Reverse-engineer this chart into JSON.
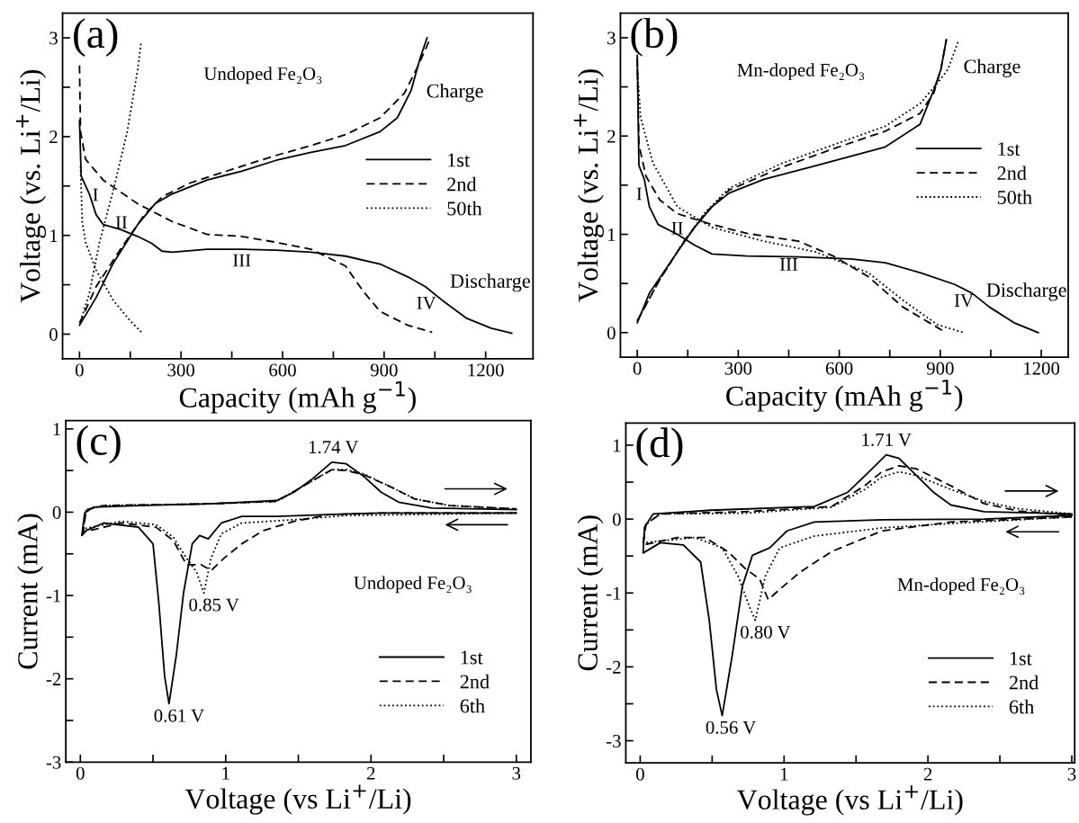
{
  "chart_data": [
    {
      "type": "line",
      "xlabel": "Capacity (mAh g$^{−1}$)",
      "ylabel": "Voltage (vs. Li$^{+}$/Li)",
      "legend": "right",
      "xlim": [
        -50,
        1340
      ],
      "ylim": [
        -0.25,
        3.25
      ],
      "xticks": [
        0,
        {
          "value": 150,
          "label": null
        },
        300,
        {
          "value": 450,
          "label": null
        },
        600,
        {
          "value": 750,
          "label": null
        },
        900,
        {
          "value": 1050,
          "label": null
        },
        1200
      ],
      "yticks": [
        0,
        {
          "value": 0.5,
          "label": null
        },
        1,
        {
          "value": 1.5,
          "label": null
        },
        2,
        {
          "value": 2.5,
          "label": null
        },
        3
      ],
      "annotations": [
        "(a)",
        "Undoped Fe₂O₃",
        "I",
        "II",
        "III",
        "IV",
        "Charge",
        "Discharge"
      ],
      "series": [
        {
          "name": "1st",
          "color": "#000000",
          "line_style": "solid",
          "x": [
            0,
            5,
            29,
            49,
            70,
            121,
            172,
            213,
            244,
            274,
            377,
            479,
            581,
            684,
            786,
            888,
            970,
            1022,
            1073,
            1144,
            1216,
            1277
          ],
          "values": [
            2.16,
            1.6,
            1.42,
            1.21,
            1.11,
            1.06,
            0.99,
            0.92,
            0.84,
            0.83,
            0.86,
            0.86,
            0.85,
            0.83,
            0.79,
            0.71,
            0.58,
            0.48,
            0.34,
            0.16,
            0.06,
            0.01
          ]
        },
        {
          "color": "#000000",
          "line_style": "solid",
          "x": [
            0,
            49,
            100,
            172,
            223,
            274,
            377,
            479,
            581,
            684,
            786,
            888,
            939,
            980,
            1006,
            1027
          ],
          "values": [
            0.09,
            0.37,
            0.72,
            1.11,
            1.32,
            1.42,
            1.56,
            1.65,
            1.76,
            1.84,
            1.91,
            2.05,
            2.19,
            2.47,
            2.79,
            3.0
          ]
        },
        {
          "name": "2nd",
          "color": "#000000",
          "line_style": "dashed",
          "x": [
            0,
            3,
            18,
            70,
            172,
            274,
            377,
            479,
            581,
            684,
            786,
            837,
            888,
            970,
            1042
          ],
          "values": [
            2.72,
            2.05,
            1.77,
            1.56,
            1.32,
            1.14,
            1.01,
            0.99,
            0.93,
            0.86,
            0.69,
            0.44,
            0.23,
            0.09,
            0.02
          ]
        },
        {
          "color": "#000000",
          "line_style": "dashed",
          "x": [
            0,
            49,
            121,
            192,
            244,
            326,
            479,
            581,
            684,
            786,
            888,
            960,
            1001,
            1032
          ],
          "values": [
            0.11,
            0.48,
            0.86,
            1.21,
            1.39,
            1.53,
            1.7,
            1.81,
            1.91,
            2.02,
            2.19,
            2.44,
            2.72,
            2.96
          ]
        },
        {
          "name": "50th",
          "color": "#000000",
          "line_style": "dotted",
          "x": [
            3,
            8,
            18,
            49,
            100,
            151,
            183
          ],
          "values": [
            1.7,
            1.14,
            0.93,
            0.65,
            0.34,
            0.13,
            0.02
          ]
        },
        {
          "color": "#000000",
          "line_style": "dotted",
          "x": [
            3,
            29,
            59,
            100,
            141,
            172,
            182
          ],
          "values": [
            0.13,
            0.41,
            0.93,
            1.46,
            2.05,
            2.68,
            2.96
          ]
        }
      ]
    },
    {
      "type": "line",
      "xlabel": "Capacity (mAh g$^{−1}$)",
      "ylabel": "Voltage (vs. Li$^{+}$/Li)",
      "legend": "right",
      "xlim": [
        -50,
        1280
      ],
      "ylim": [
        -0.25,
        3.25
      ],
      "xticks": [
        0,
        {
          "value": 150,
          "label": null
        },
        300,
        {
          "value": 450,
          "label": null
        },
        600,
        {
          "value": 750,
          "label": null
        },
        900,
        {
          "value": 1050,
          "label": null
        },
        1200
      ],
      "yticks": [
        0,
        {
          "value": 0.5,
          "label": null
        },
        1,
        {
          "value": 1.5,
          "label": null
        },
        2,
        {
          "value": 2.5,
          "label": null
        },
        3
      ],
      "annotations": [
        "(b)",
        "Mn-doped Fe₂O₃",
        "I",
        "II",
        "III",
        "IV",
        "Charge",
        "Discharge"
      ],
      "series": [
        {
          "name": "1st",
          "color": "#000000",
          "line_style": "solid",
          "x": [
            0,
            5,
            21,
            36,
            62,
            119,
            170,
            222,
            325,
            479,
            634,
            737,
            840,
            943,
            995,
            1046,
            1119,
            1191
          ],
          "values": [
            2.82,
            1.7,
            1.56,
            1.28,
            1.1,
            1.0,
            0.89,
            0.8,
            0.78,
            0.77,
            0.75,
            0.71,
            0.61,
            0.49,
            0.4,
            0.26,
            0.1,
            0.0
          ]
        },
        {
          "color": "#000000",
          "line_style": "solid",
          "x": [
            0,
            36,
            119,
            170,
            222,
            273,
            376,
            531,
            737,
            840,
            881,
            902,
            918
          ],
          "values": [
            0.1,
            0.4,
            0.82,
            1.07,
            1.28,
            1.42,
            1.56,
            1.7,
            1.89,
            2.12,
            2.47,
            2.68,
            2.98
          ]
        },
        {
          "name": "2nd",
          "color": "#000000",
          "line_style": "dashed",
          "x": [
            0,
            5,
            26,
            67,
            119,
            222,
            325,
            479,
            582,
            686,
            789,
            912
          ],
          "values": [
            2.79,
            1.91,
            1.59,
            1.35,
            1.21,
            1.1,
            1.01,
            0.93,
            0.78,
            0.57,
            0.26,
            0.01
          ]
        },
        {
          "color": "#000000",
          "line_style": "dashed",
          "x": [
            0,
            67,
            139,
            201,
            273,
            428,
            582,
            737,
            840,
            881,
            902,
            918
          ],
          "values": [
            0.12,
            0.54,
            0.93,
            1.21,
            1.45,
            1.68,
            1.87,
            2.05,
            2.23,
            2.44,
            2.68,
            2.98
          ]
        },
        {
          "name": "50th",
          "color": "#000000",
          "line_style": "dotted",
          "x": [
            0,
            10,
            46,
            119,
            222,
            376,
            531,
            686,
            789,
            892,
            969
          ],
          "values": [
            2.68,
            2.19,
            1.73,
            1.28,
            1.07,
            0.93,
            0.82,
            0.61,
            0.33,
            0.08,
            0.0
          ]
        },
        {
          "color": "#000000",
          "line_style": "dotted",
          "x": [
            0,
            67,
            139,
            201,
            273,
            428,
            582,
            737,
            840,
            892,
            923,
            954
          ],
          "values": [
            0.12,
            0.54,
            0.93,
            1.22,
            1.47,
            1.72,
            1.91,
            2.1,
            2.33,
            2.54,
            2.68,
            2.97
          ]
        }
      ]
    },
    {
      "type": "line",
      "xlabel": "Voltage (vs Li$^{+}$/Li)",
      "ylabel": "Current (mA)",
      "legend": "bottom right",
      "xlim": [
        -0.1,
        3.1
      ],
      "ylim": [
        -3,
        1.1
      ],
      "xticks": [
        0,
        {
          "value": 0.5,
          "label": null
        },
        1,
        {
          "value": 1.5,
          "label": null
        },
        2,
        {
          "value": 2.5,
          "label": null
        },
        3
      ],
      "yticks": [
        -3,
        {
          "value": -2.5,
          "label": null
        },
        -2,
        {
          "value": -1.5,
          "label": null
        },
        -1,
        {
          "value": -0.5,
          "label": null
        },
        0,
        {
          "value": 0.5,
          "label": null
        },
        1
      ],
      "annotations": [
        "(c)",
        "Undoped Fe₂O₃",
        {
          "text": "1.74 V",
          "x": 1.74,
          "y": 0.6
        },
        {
          "text": "0.85 V",
          "x": 0.85,
          "y": -0.97
        },
        {
          "text": "0.61 V",
          "x": 0.61,
          "y": -2.3
        }
      ],
      "series": [
        {
          "name": "1st",
          "color": "#000000",
          "line_style": "solid",
          "x": [
            3.0,
            2.54,
            2.07,
            1.83,
            1.35,
            1.11,
            0.97,
            0.88,
            0.82,
            0.77,
            0.71,
            0.66,
            0.61,
            0.58,
            0.54,
            0.5,
            0.4,
            0.16,
            0.04,
            0.01,
            0.03,
            0.09,
            0.4,
            0.88,
            1.35,
            1.47,
            1.59,
            1.73,
            1.83,
            1.95,
            2.07,
            2.19,
            2.42,
            3.0
          ],
          "values": [
            -0.01,
            -0.01,
            -0.01,
            -0.02,
            -0.05,
            -0.05,
            -0.13,
            -0.32,
            -0.28,
            -0.38,
            -0.97,
            -1.72,
            -2.3,
            -1.97,
            -1.09,
            -0.38,
            -0.18,
            -0.13,
            -0.22,
            -0.28,
            -0.01,
            0.06,
            0.08,
            0.1,
            0.14,
            0.24,
            0.39,
            0.6,
            0.58,
            0.43,
            0.24,
            0.12,
            0.05,
            0.03
          ]
        },
        {
          "name": "2nd",
          "color": "#000000",
          "line_style": "dashed",
          "x": [
            3.0,
            2.07,
            1.71,
            1.47,
            1.26,
            1.11,
            0.99,
            0.9,
            0.83,
            0.73,
            0.64,
            0.52,
            0.28,
            0.02,
            0.04,
            0.16,
            0.88,
            1.35,
            1.59,
            1.73,
            1.83,
            1.95,
            2.14,
            2.3,
            2.54,
            3.0
          ],
          "values": [
            -0.01,
            -0.01,
            -0.03,
            -0.11,
            -0.22,
            -0.38,
            -0.55,
            -0.7,
            -0.63,
            -0.63,
            -0.34,
            -0.18,
            -0.13,
            -0.24,
            0.03,
            0.08,
            0.1,
            0.13,
            0.37,
            0.51,
            0.5,
            0.45,
            0.3,
            0.16,
            0.08,
            0.04
          ]
        },
        {
          "name": "6th",
          "color": "#000000",
          "line_style": "dotted",
          "x": [
            3.0,
            1.83,
            1.47,
            1.11,
            0.97,
            0.9,
            0.85,
            0.8,
            0.73,
            0.64,
            0.52,
            0.28,
            0.02,
            0.04,
            0.16,
            0.88,
            1.35,
            1.59,
            1.73,
            1.83,
            1.95,
            2.14,
            2.3,
            2.54,
            3.0
          ],
          "values": [
            -0.01,
            -0.04,
            -0.09,
            -0.13,
            -0.26,
            -0.55,
            -0.97,
            -0.72,
            -0.55,
            -0.3,
            -0.15,
            -0.11,
            -0.2,
            0.03,
            0.08,
            0.1,
            0.13,
            0.37,
            0.51,
            0.51,
            0.46,
            0.3,
            0.16,
            0.08,
            0.04
          ]
        }
      ]
    },
    {
      "type": "line",
      "xlabel": "Voltage (vs Li$^{+}$/Li)",
      "ylabel": "Current (mA)",
      "legend": "bottom right",
      "xlim": [
        -0.1,
        3.02
      ],
      "ylim": [
        -3.3,
        1.3
      ],
      "xticks": [
        0,
        {
          "value": 0.5,
          "label": null
        },
        1,
        {
          "value": 1.5,
          "label": null
        },
        2,
        {
          "value": 2.5,
          "label": null
        },
        3
      ],
      "yticks": [
        -3,
        {
          "value": -2.5,
          "label": null
        },
        -2,
        {
          "value": -1.5,
          "label": null
        },
        -1,
        {
          "value": -0.5,
          "label": null
        },
        0,
        {
          "value": 0.5,
          "label": null
        },
        1
      ],
      "annotations": [
        "(d)",
        "Mn-doped Fe₂O₃",
        {
          "text": "1.71 V",
          "x": 1.71,
          "y": 0.87
        },
        {
          "text": "0.80 V",
          "x": 0.8,
          "y": -1.37
        },
        {
          "text": "0.56 V",
          "x": 0.56,
          "y": -2.66
        }
      ],
      "series": [
        {
          "name": "1st",
          "color": "#000000",
          "line_style": "solid",
          "x": [
            3.0,
            2.39,
            1.68,
            1.21,
            1.02,
            0.9,
            0.78,
            0.71,
            0.64,
            0.57,
            0.53,
            0.48,
            0.42,
            0.3,
            0.14,
            0.02,
            0.03,
            0.09,
            0.49,
            1.21,
            1.44,
            1.59,
            1.71,
            1.8,
            1.92,
            2.04,
            2.16,
            2.39,
            3.0
          ],
          "values": [
            0.05,
            0.0,
            -0.01,
            -0.04,
            -0.16,
            -0.39,
            -0.49,
            -0.91,
            -1.84,
            -2.66,
            -2.31,
            -1.37,
            -0.58,
            -0.35,
            -0.32,
            -0.46,
            -0.11,
            0.07,
            0.12,
            0.17,
            0.36,
            0.64,
            0.87,
            0.82,
            0.59,
            0.36,
            0.19,
            0.1,
            0.07
          ]
        },
        {
          "name": "2nd",
          "color": "#000000",
          "line_style": "dashed",
          "x": [
            3.0,
            2.16,
            1.68,
            1.33,
            1.11,
            0.97,
            0.89,
            0.83,
            0.73,
            0.61,
            0.45,
            0.26,
            0.02,
            0.04,
            0.14,
            0.73,
            1.33,
            1.56,
            1.68,
            1.8,
            1.92,
            2.16,
            2.39,
            2.63,
            3.0
          ],
          "values": [
            0.03,
            -0.04,
            -0.16,
            -0.44,
            -0.72,
            -0.95,
            -1.09,
            -0.81,
            -0.67,
            -0.44,
            -0.25,
            -0.25,
            -0.35,
            -0.07,
            0.07,
            0.1,
            0.17,
            0.45,
            0.64,
            0.72,
            0.68,
            0.45,
            0.21,
            0.11,
            0.05
          ]
        },
        {
          "name": "6th",
          "color": "#000000",
          "line_style": "dotted",
          "x": [
            3.0,
            2.16,
            1.68,
            1.21,
            0.97,
            0.87,
            0.8,
            0.76,
            0.68,
            0.57,
            0.38,
            0.02,
            0.04,
            0.14,
            0.73,
            1.33,
            1.56,
            1.68,
            1.8,
            1.92,
            2.16,
            2.39,
            2.63,
            3.0
          ],
          "values": [
            0.03,
            -0.06,
            -0.12,
            -0.23,
            -0.39,
            -0.77,
            -1.37,
            -1.19,
            -0.77,
            -0.39,
            -0.25,
            -0.32,
            -0.07,
            0.07,
            0.08,
            0.16,
            0.4,
            0.57,
            0.64,
            0.59,
            0.4,
            0.24,
            0.14,
            0.07
          ]
        }
      ]
    }
  ]
}
